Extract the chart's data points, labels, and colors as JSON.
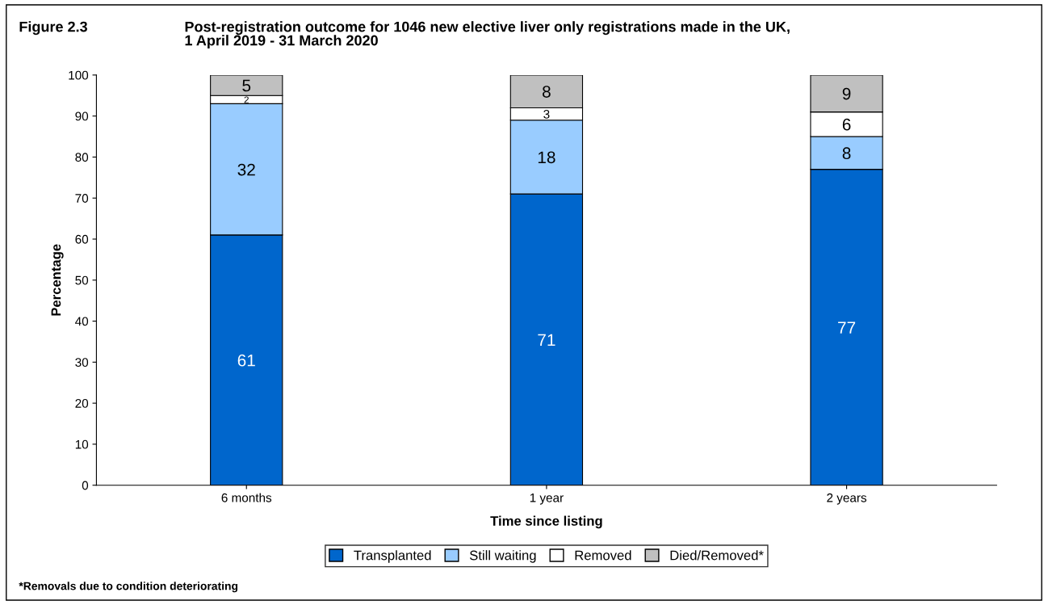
{
  "chart_data": {
    "type": "bar",
    "title": "Figure 2.3",
    "subtitle": "Post-registration outcome for 1046 new elective liver only registrations made in the UK,\n1 April 2019 - 31 March 2020",
    "xlabel": "Time since listing",
    "ylabel": "Percentage",
    "categories": [
      "6 months",
      "1 year",
      "2 years"
    ],
    "series": [
      {
        "name": "Transplanted",
        "color": "#0066cc",
        "values": [
          61,
          71,
          77
        ]
      },
      {
        "name": "Still waiting",
        "color": "#99ccff",
        "values": [
          32,
          18,
          8
        ]
      },
      {
        "name": "Removed",
        "color": "#ffffff",
        "values": [
          2,
          3,
          6
        ]
      },
      {
        "name": "Died/Removed*",
        "color": "#c0c0c0",
        "values": [
          5,
          8,
          9
        ]
      }
    ],
    "stacked": true,
    "data_labels": true,
    "ylim": [
      0,
      100
    ],
    "yticks": [
      0,
      10,
      20,
      30,
      40,
      50,
      60,
      70,
      80,
      90,
      100
    ],
    "grid": false,
    "legend": "bottom",
    "annotations": [
      "*Removals due to condition deteriorating"
    ]
  }
}
